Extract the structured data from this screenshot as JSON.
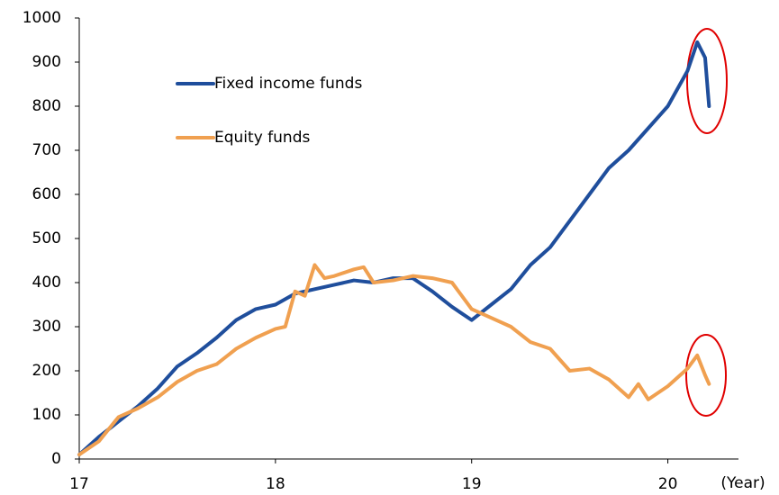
{
  "chart_data": {
    "type": "line",
    "x_label": "(Year)",
    "xlim": [
      17,
      20.36
    ],
    "xticks": [
      17,
      18,
      19,
      20
    ],
    "ylim": [
      0,
      1000
    ],
    "yticks": [
      0,
      100,
      200,
      300,
      400,
      500,
      600,
      700,
      800,
      900,
      1000
    ],
    "grid": false,
    "series": [
      {
        "name": "Fixed income funds",
        "color": "#1f4e9c",
        "x": [
          17.0,
          17.1,
          17.2,
          17.3,
          17.4,
          17.5,
          17.6,
          17.7,
          17.8,
          17.9,
          18.0,
          18.1,
          18.2,
          18.3,
          18.4,
          18.5,
          18.6,
          18.7,
          18.8,
          18.9,
          19.0,
          19.1,
          19.2,
          19.3,
          19.4,
          19.5,
          19.6,
          19.7,
          19.8,
          19.9,
          20.0,
          20.1,
          20.15,
          20.19,
          20.21
        ],
        "values": [
          10,
          50,
          85,
          120,
          160,
          210,
          240,
          275,
          315,
          340,
          350,
          375,
          385,
          395,
          405,
          400,
          410,
          410,
          380,
          345,
          315,
          350,
          385,
          440,
          480,
          540,
          600,
          660,
          700,
          750,
          800,
          880,
          945,
          910,
          800
        ]
      },
      {
        "name": "Equity funds",
        "color": "#f0a050",
        "x": [
          17.0,
          17.1,
          17.2,
          17.3,
          17.4,
          17.5,
          17.6,
          17.7,
          17.8,
          17.9,
          18.0,
          18.05,
          18.1,
          18.15,
          18.2,
          18.25,
          18.3,
          18.4,
          18.45,
          18.5,
          18.6,
          18.7,
          18.8,
          18.9,
          19.0,
          19.1,
          19.2,
          19.3,
          19.4,
          19.5,
          19.6,
          19.7,
          19.8,
          19.85,
          19.9,
          20.0,
          20.05,
          20.1,
          20.15,
          20.19,
          20.21
        ],
        "values": [
          10,
          40,
          95,
          115,
          140,
          175,
          200,
          215,
          250,
          275,
          295,
          300,
          380,
          370,
          440,
          410,
          415,
          430,
          435,
          400,
          405,
          415,
          410,
          400,
          340,
          320,
          300,
          265,
          250,
          200,
          205,
          180,
          140,
          170,
          135,
          165,
          185,
          205,
          235,
          190,
          170
        ]
      }
    ]
  }
}
